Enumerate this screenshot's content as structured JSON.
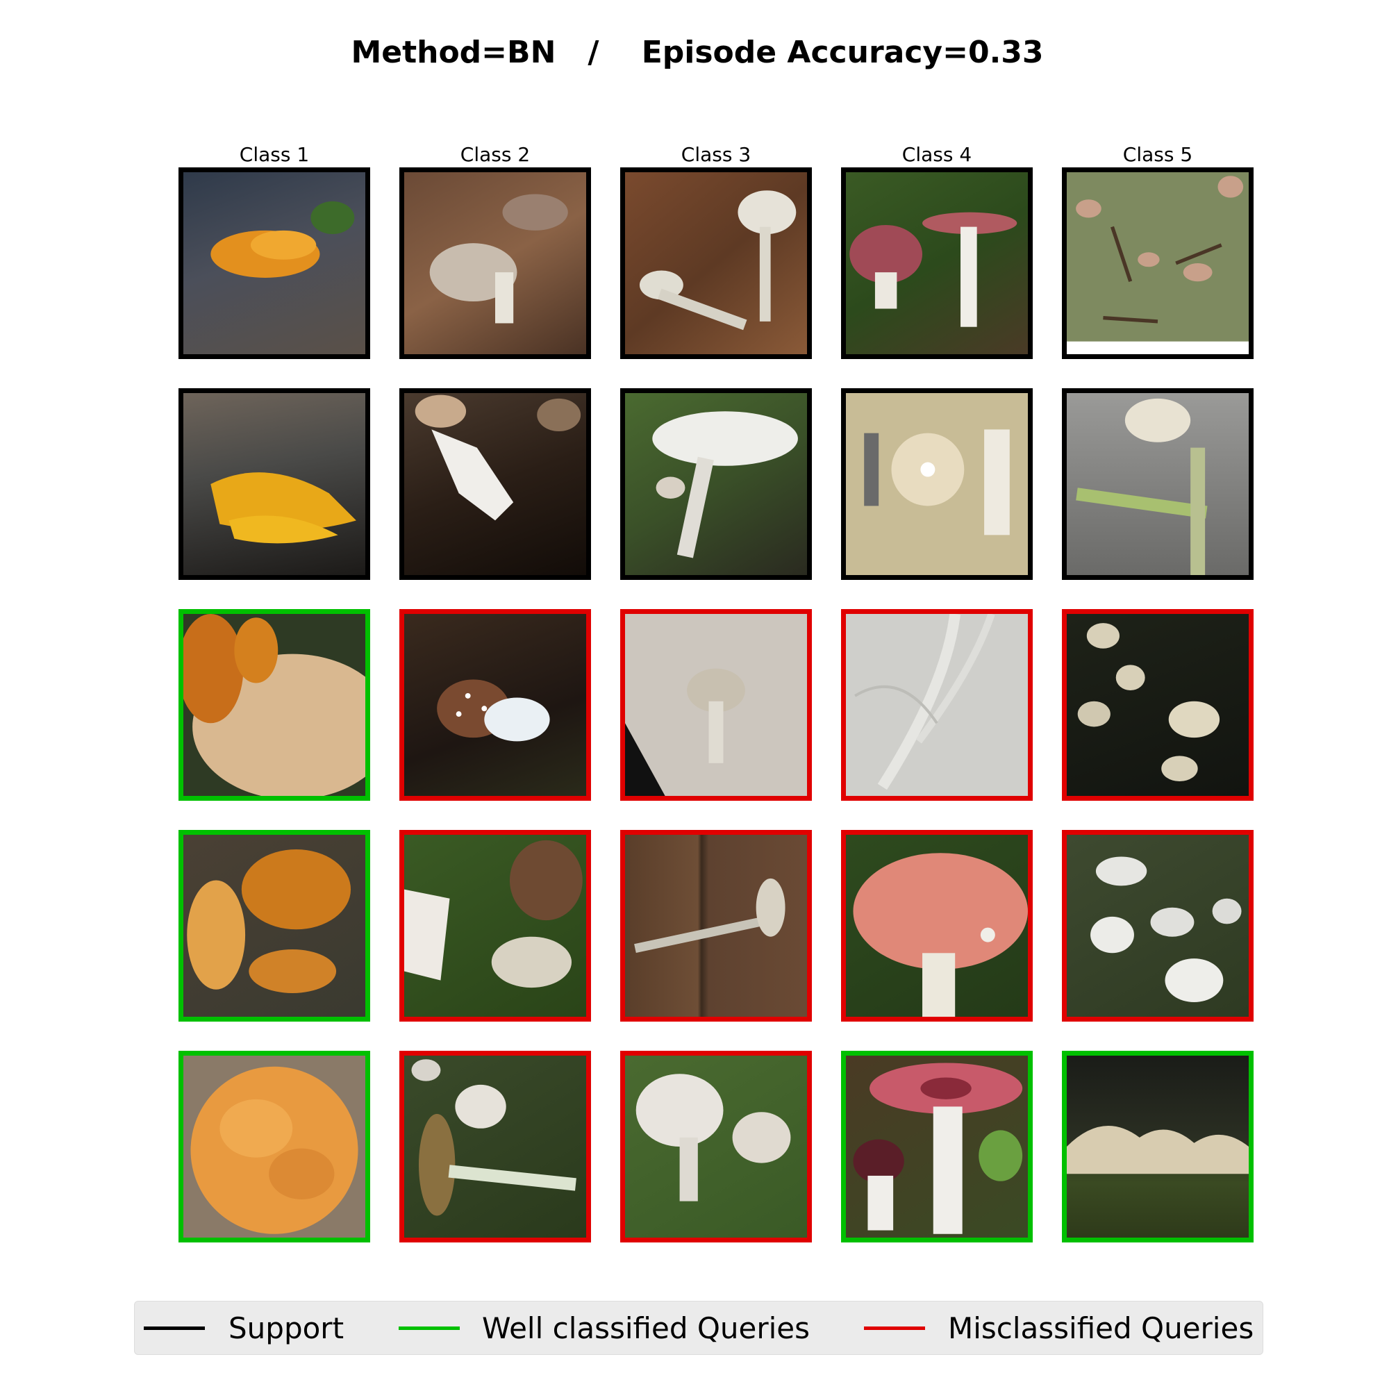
{
  "title": "Method=BN   /    Episode Accuracy=0.33",
  "columns": [
    "Class 1",
    "Class 2",
    "Class 3",
    "Class 4",
    "Class 5"
  ],
  "colors": {
    "support": "#000000",
    "well_classified": "#00c000",
    "misclassified": "#e00000"
  },
  "legend": {
    "support": "Support",
    "well": "Well classified Queries",
    "mis": "Misclassified Queries"
  },
  "rows": [
    [
      "support",
      "support",
      "support",
      "support",
      "support"
    ],
    [
      "support",
      "support",
      "support",
      "support",
      "support"
    ],
    [
      "well",
      "mis",
      "mis",
      "mis",
      "mis"
    ],
    [
      "well",
      "mis",
      "mis",
      "mis",
      "mis"
    ],
    [
      "well",
      "mis",
      "mis",
      "well",
      "well"
    ]
  ]
}
